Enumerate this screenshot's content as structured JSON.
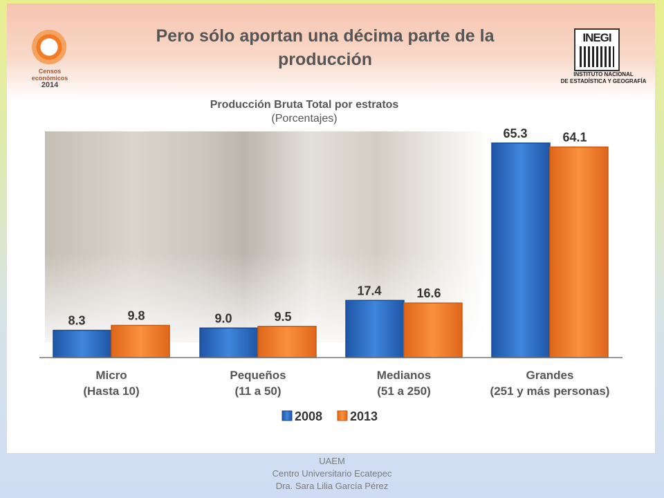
{
  "slide": {
    "title_line1": "Pero sólo aportan una décima parte de la",
    "title_line2": "producción",
    "logo_left": {
      "line1": "Censos",
      "line2": "económicos",
      "line3": "2014"
    },
    "logo_right": {
      "word": "INEGI",
      "line1": "INSTITUTO NACIONAL",
      "line2": "DE ESTADÍSTICA Y GEOGRAFÍA"
    }
  },
  "chart_data": {
    "type": "bar",
    "title": "Producción Bruta Total por estratos",
    "subtitle": "(Porcentajes)",
    "categories": [
      [
        "Micro",
        "(Hasta 10)"
      ],
      [
        "Pequeños",
        "(11 a 50)"
      ],
      [
        "Medianos",
        "(51 a 250)"
      ],
      [
        "Grandes",
        "(251 y más personas)"
      ]
    ],
    "series": [
      {
        "name": "2008",
        "values": [
          8.3,
          9.0,
          17.4,
          65.3
        ],
        "labels": [
          "8.3",
          "9.0",
          "17.4",
          "65.3"
        ]
      },
      {
        "name": "2013",
        "values": [
          9.8,
          9.5,
          16.6,
          64.1
        ],
        "labels": [
          "9.8",
          "9.5",
          "16.6",
          "64.1"
        ]
      }
    ],
    "ylim": [
      0,
      70
    ],
    "grid": false,
    "legend_position": "bottom",
    "colors": {
      "2008": "#2f6fc4",
      "2013": "#f07a24"
    }
  },
  "footer": {
    "line1": "UAEM",
    "line2": "Centro Universitario Ecatepec",
    "line3": "Dra. Sara Lilia García Pérez"
  }
}
